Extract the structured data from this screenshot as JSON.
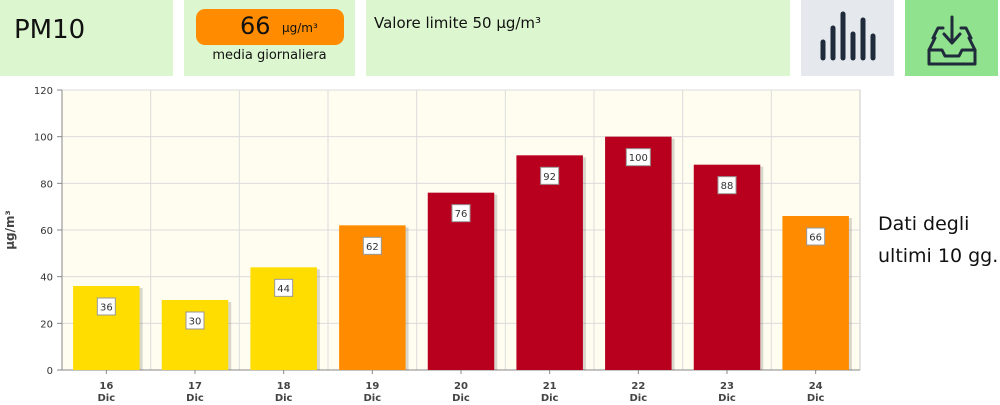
{
  "header": {
    "pollutant": "PM10",
    "average_value": "66",
    "average_unit": "μg/m³",
    "average_caption": "media giornaliera",
    "limit_text": "Valore limite 50 μg/m³",
    "chart_icon": "bar-chart-icon",
    "download_icon": "download-tray-icon",
    "average_color": "#ff8c00"
  },
  "side_note": {
    "line1": "Dati degli",
    "line2": "ultimi 10 gg."
  },
  "chart_data": {
    "type": "bar",
    "categories": [
      "16 Dic",
      "17 Dic",
      "18 Dic",
      "19 Dic",
      "20 Dic",
      "21 Dic",
      "22 Dic",
      "23 Dic",
      "24 Dic"
    ],
    "category_day": [
      "16",
      "17",
      "18",
      "19",
      "20",
      "21",
      "22",
      "23",
      "24"
    ],
    "category_month": [
      "Dic",
      "Dic",
      "Dic",
      "Dic",
      "Dic",
      "Dic",
      "Dic",
      "Dic",
      "Dic"
    ],
    "values": [
      36,
      30,
      44,
      62,
      76,
      92,
      100,
      88,
      66
    ],
    "colors": [
      "#ffdd00",
      "#ffdd00",
      "#ffdd00",
      "#ff8c00",
      "#b8001e",
      "#b8001e",
      "#b8001e",
      "#b8001e",
      "#ff8c00"
    ],
    "ylabel": "μg/m³",
    "ylim": [
      0,
      120
    ],
    "yticks": [
      0,
      20,
      40,
      60,
      80,
      100,
      120
    ],
    "grid": true
  }
}
